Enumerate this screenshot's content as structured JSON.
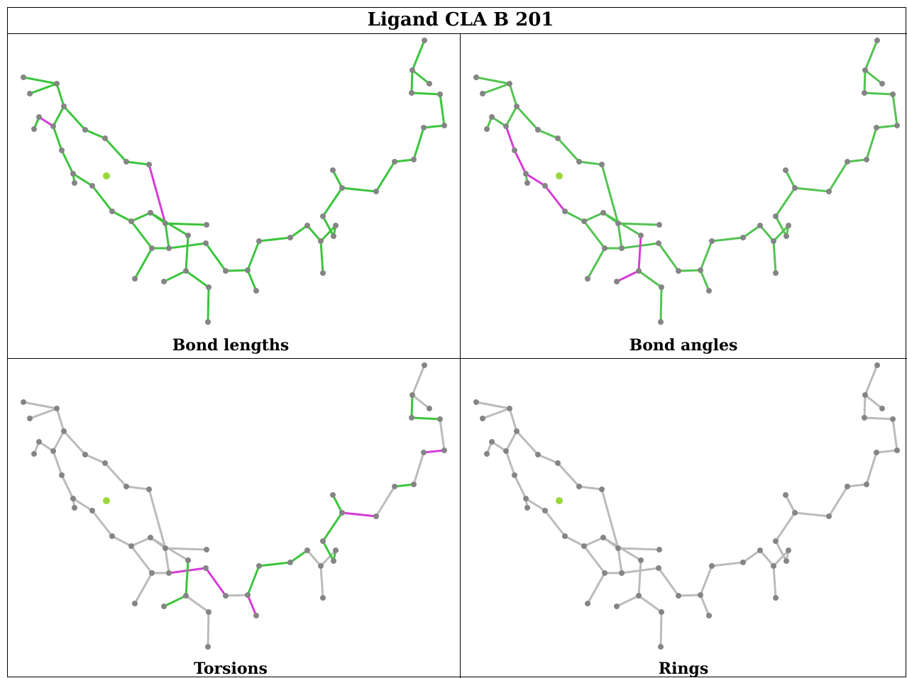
{
  "title": "Ligand CLA B 201",
  "panels": [
    {
      "caption": "Bond lengths"
    },
    {
      "caption": "Bond angles"
    },
    {
      "caption": "Torsions"
    },
    {
      "caption": "Rings"
    }
  ]
}
